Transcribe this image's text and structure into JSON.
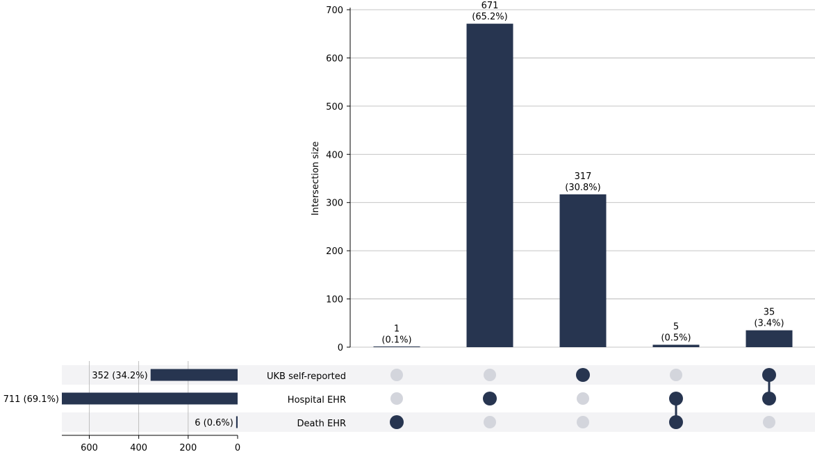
{
  "colors": {
    "bar": "#273550",
    "dot_active": "#273550",
    "dot_inactive": "#d3d5dc",
    "stripe": "#f3f3f5",
    "grid": "#b0b0b0",
    "axis": "#000000"
  },
  "chart_data": [
    {
      "type": "bar",
      "role": "intersection-size",
      "ylabel": "Intersection size",
      "ylim": [
        0,
        700
      ],
      "yticks": [
        0,
        100,
        200,
        300,
        400,
        500,
        600,
        700
      ],
      "grid": true,
      "values": [
        1,
        671,
        317,
        5,
        35
      ],
      "value_labels": [
        "1",
        "671",
        "317",
        "5",
        "35"
      ],
      "percent_labels": [
        "(0.1%)",
        "(65.2%)",
        "(30.8%)",
        "(0.5%)",
        "(3.4%)"
      ]
    },
    {
      "type": "bar",
      "role": "set-size",
      "orientation": "horizontal",
      "direction": "right-to-left",
      "xlim": [
        0,
        711
      ],
      "xticks": [
        600,
        400,
        200,
        0
      ],
      "grid": true,
      "sets": [
        "UKB self-reported",
        "Hospital EHR",
        "Death EHR"
      ],
      "values": [
        352,
        711,
        6
      ],
      "labels": [
        "352 (34.2%)",
        "711 (69.1%)",
        "6 (0.6%)"
      ]
    },
    {
      "type": "table",
      "role": "membership-matrix",
      "rows": [
        "UKB self-reported",
        "Hospital EHR",
        "Death EHR"
      ],
      "columns": [
        [
          false,
          false,
          true
        ],
        [
          false,
          true,
          false
        ],
        [
          true,
          false,
          false
        ],
        [
          false,
          true,
          true
        ],
        [
          true,
          true,
          false
        ]
      ]
    }
  ]
}
